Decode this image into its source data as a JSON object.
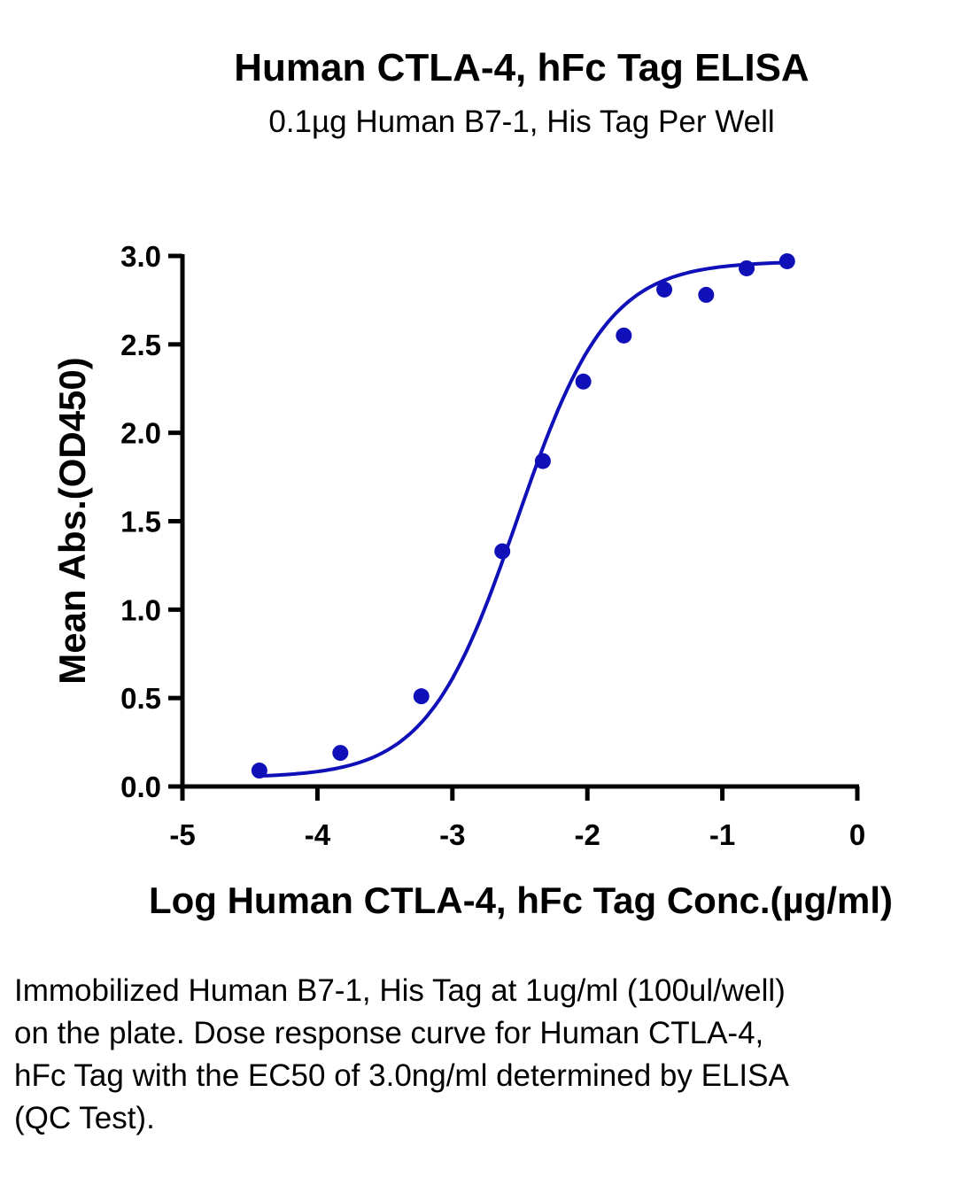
{
  "title": "Human CTLA-4, hFc Tag ELISA",
  "subtitle": "0.1µg Human B7-1, His Tag Per Well",
  "caption": "Immobilized Human B7-1, His Tag at 1ug/ml (100ul/well) on the plate. Dose response curve for Human CTLA-4, hFc Tag with the EC50 of 3.0ng/ml determined by ELISA (QC Test).",
  "colors": {
    "series": "#1010b8",
    "axis": "#000000"
  },
  "chart_data": {
    "type": "scatter",
    "title": "Human CTLA-4, hFc Tag ELISA",
    "subtitle": "0.1µg Human B7-1, His Tag Per Well",
    "xlabel": "Log Human CTLA-4, hFc Tag Conc.(µg/ml)",
    "ylabel": "Mean Abs.(OD450)",
    "xlim": [
      -5,
      0
    ],
    "ylim": [
      0,
      3.0
    ],
    "xticks": [
      -5,
      -4,
      -3,
      -2,
      -1,
      0
    ],
    "xtick_labels": [
      "-5",
      "-4",
      "-3",
      "-2",
      "-1",
      "0"
    ],
    "yticks": [
      0,
      0.5,
      1.0,
      1.5,
      2.0,
      2.5,
      3.0
    ],
    "ytick_labels": [
      "0.0",
      "0.5",
      "1.0",
      "1.5",
      "2.0",
      "2.5",
      "3.0"
    ],
    "grid": false,
    "series": [
      {
        "points": [
          {
            "x": -4.43,
            "y": 0.09
          },
          {
            "x": -3.83,
            "y": 0.19
          },
          {
            "x": -3.23,
            "y": 0.51
          },
          {
            "x": -2.63,
            "y": 1.33
          },
          {
            "x": -2.33,
            "y": 1.84
          },
          {
            "x": -2.03,
            "y": 2.29
          },
          {
            "x": -1.73,
            "y": 2.55
          },
          {
            "x": -1.43,
            "y": 2.81
          },
          {
            "x": -1.12,
            "y": 2.78
          },
          {
            "x": -0.82,
            "y": 2.93
          },
          {
            "x": -0.52,
            "y": 2.97
          }
        ],
        "fit": {
          "model": "4PL",
          "bottom": 0.05,
          "top": 2.97,
          "logEC50": -2.52,
          "hill": 1.3
        }
      }
    ]
  }
}
